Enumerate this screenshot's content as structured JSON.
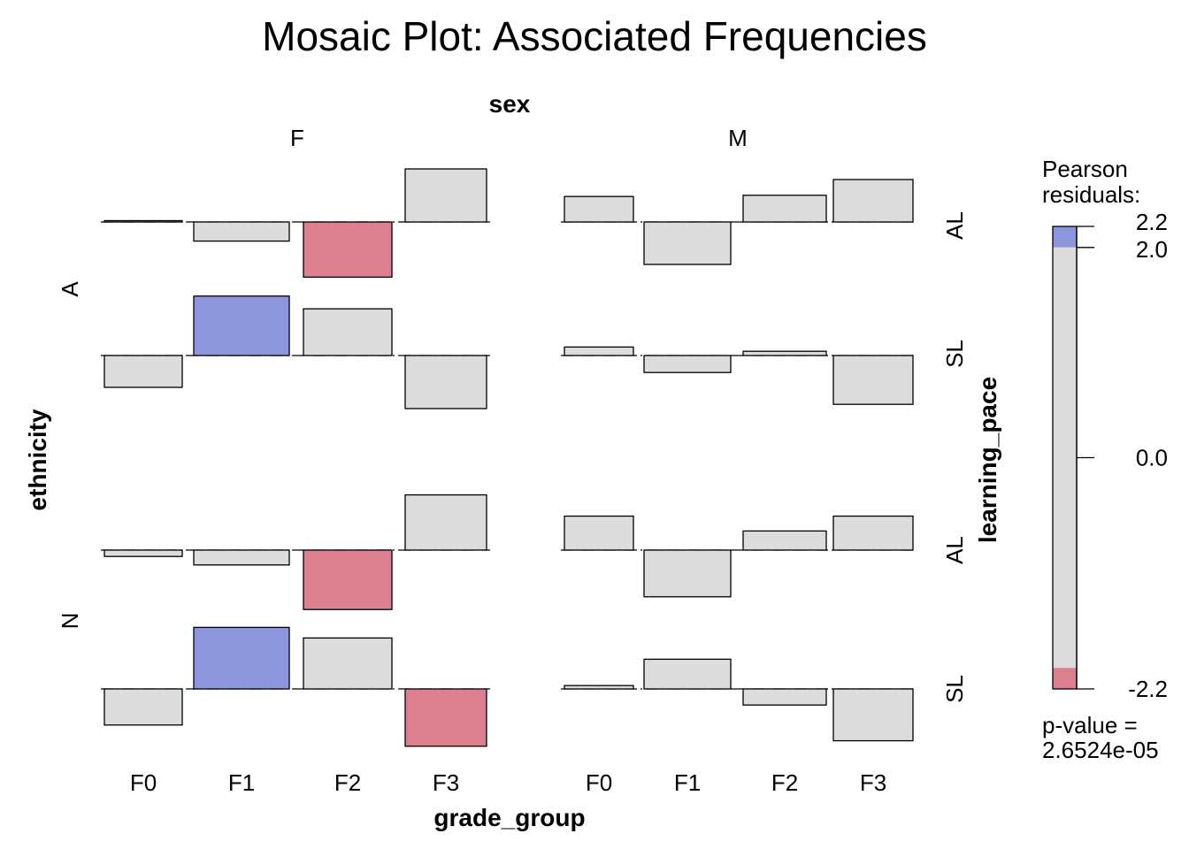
{
  "chart_data": {
    "type": "bar",
    "title": "Mosaic Plot: Associated Frequencies",
    "variables": {
      "column_panel": "sex",
      "row_panel": "ethnicity",
      "row_sub_panel": "learning_pace",
      "x": "grade_group"
    },
    "columns": [
      "F",
      "M"
    ],
    "rows": [
      "A",
      "N"
    ],
    "sub_rows": [
      "AL",
      "SL"
    ],
    "categories": [
      "F0",
      "F1",
      "F2",
      "F3"
    ],
    "cells": [
      {
        "ethnicity": "A",
        "learning_pace": "AL",
        "sex": "F",
        "values": [
          0.0,
          -0.45,
          -1.3,
          1.25
        ]
      },
      {
        "ethnicity": "A",
        "learning_pace": "AL",
        "sex": "M",
        "values": [
          0.6,
          -1.0,
          0.63,
          1.0
        ]
      },
      {
        "ethnicity": "A",
        "learning_pace": "SL",
        "sex": "F",
        "values": [
          -0.75,
          1.4,
          1.1,
          -1.25
        ]
      },
      {
        "ethnicity": "A",
        "learning_pace": "SL",
        "sex": "M",
        "values": [
          0.2,
          -0.4,
          0.1,
          -1.15
        ]
      },
      {
        "ethnicity": "N",
        "learning_pace": "AL",
        "sex": "F",
        "values": [
          -0.15,
          -0.35,
          -1.4,
          1.3
        ]
      },
      {
        "ethnicity": "N",
        "learning_pace": "AL",
        "sex": "M",
        "values": [
          0.8,
          -1.1,
          0.45,
          0.8
        ]
      },
      {
        "ethnicity": "N",
        "learning_pace": "SL",
        "sex": "F",
        "values": [
          -0.85,
          1.45,
          1.2,
          -1.35
        ]
      },
      {
        "ethnicity": "N",
        "learning_pace": "SL",
        "sex": "M",
        "values": [
          0.08,
          0.7,
          -0.38,
          -1.22
        ]
      }
    ],
    "legend": {
      "title_line1": "Pearson",
      "title_line2": "residuals:",
      "range": [
        -2.2,
        2.2
      ],
      "ticks": [
        "2.2",
        "2.0",
        "0.0",
        "-2.2"
      ],
      "tick_values": [
        2.2,
        2.0,
        0.0,
        -2.2
      ],
      "threshold": 2.0,
      "pvalue_line1": "p-value =",
      "pvalue_line2": "2.6524e-05",
      "placement": "right"
    },
    "colors": {
      "positive": "#8d95dd",
      "negative": "#dc7f8f",
      "neutral": "#dcdcdc"
    }
  }
}
